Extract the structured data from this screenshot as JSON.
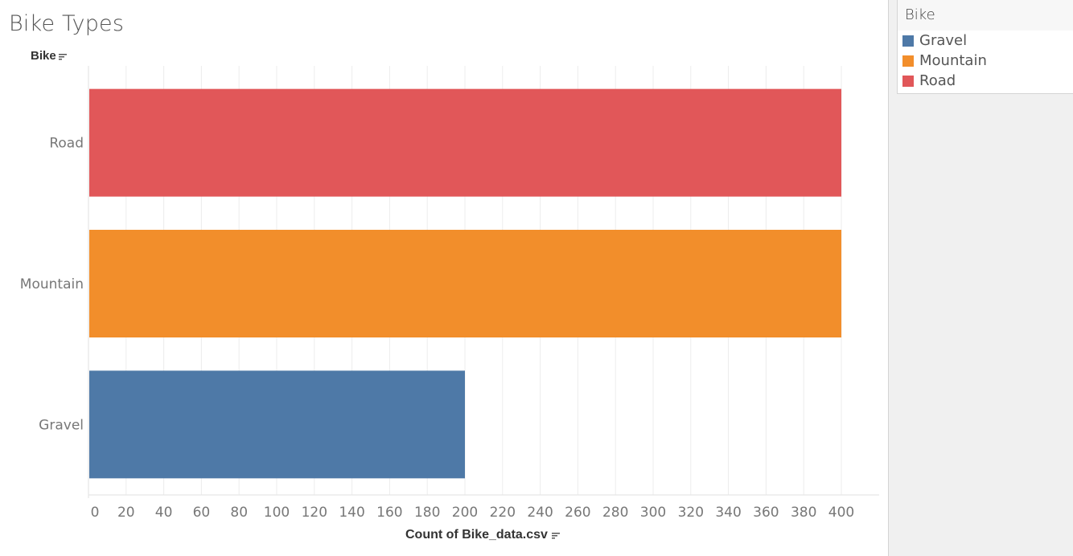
{
  "title": "Bike Types",
  "dimension_header": "Bike",
  "colors": {
    "Gravel": "#4e79a7",
    "Mountain": "#f28e2b",
    "Road": "#e15759",
    "grid": "#ececec",
    "tick_text": "#777777"
  },
  "legend": {
    "title": "Bike",
    "items": [
      {
        "label": "Gravel",
        "color": "#4e79a7"
      },
      {
        "label": "Mountain",
        "color": "#f28e2b"
      },
      {
        "label": "Road",
        "color": "#e15759"
      }
    ]
  },
  "chart_data": {
    "type": "bar",
    "orientation": "horizontal",
    "categories": [
      "Road",
      "Mountain",
      "Gravel"
    ],
    "values": [
      400,
      400,
      200
    ],
    "title": "Bike Types",
    "xlabel": "Count of Bike_data.csv",
    "ylabel": "Bike",
    "xlim": [
      0,
      420
    ],
    "xticks": [
      0,
      20,
      40,
      60,
      80,
      100,
      120,
      140,
      160,
      180,
      200,
      220,
      240,
      260,
      280,
      300,
      320,
      340,
      360,
      380,
      400
    ],
    "grid": true
  }
}
